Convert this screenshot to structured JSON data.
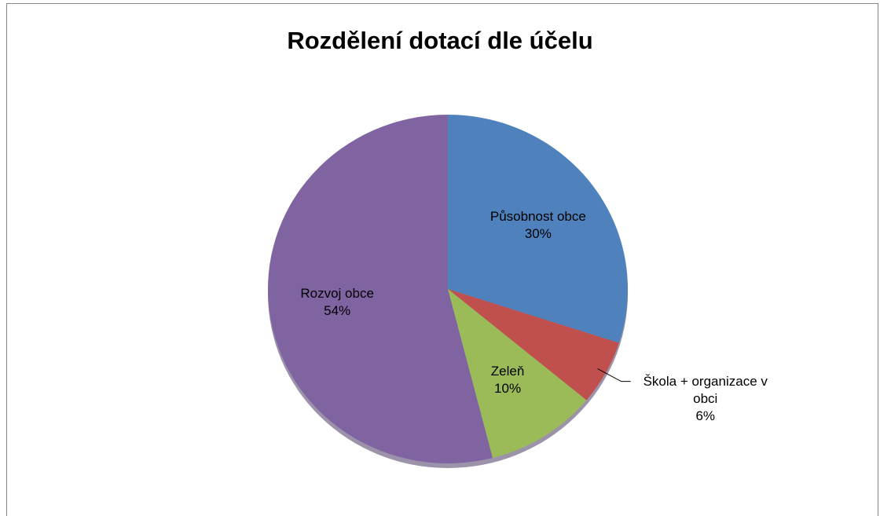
{
  "chart_data": {
    "type": "pie",
    "title": "Rozdělení dotací dle účelu",
    "categories": [
      "Působnost obce",
      "Škola + organizace v obci",
      "Zeleň",
      "Rozvoj obce"
    ],
    "values": [
      30,
      6,
      10,
      54
    ],
    "value_labels": [
      "30%",
      "6%",
      "10%",
      "54%"
    ],
    "colors": [
      "#4f81bd",
      "#c0504d",
      "#9bbb59",
      "#8064a2"
    ]
  }
}
